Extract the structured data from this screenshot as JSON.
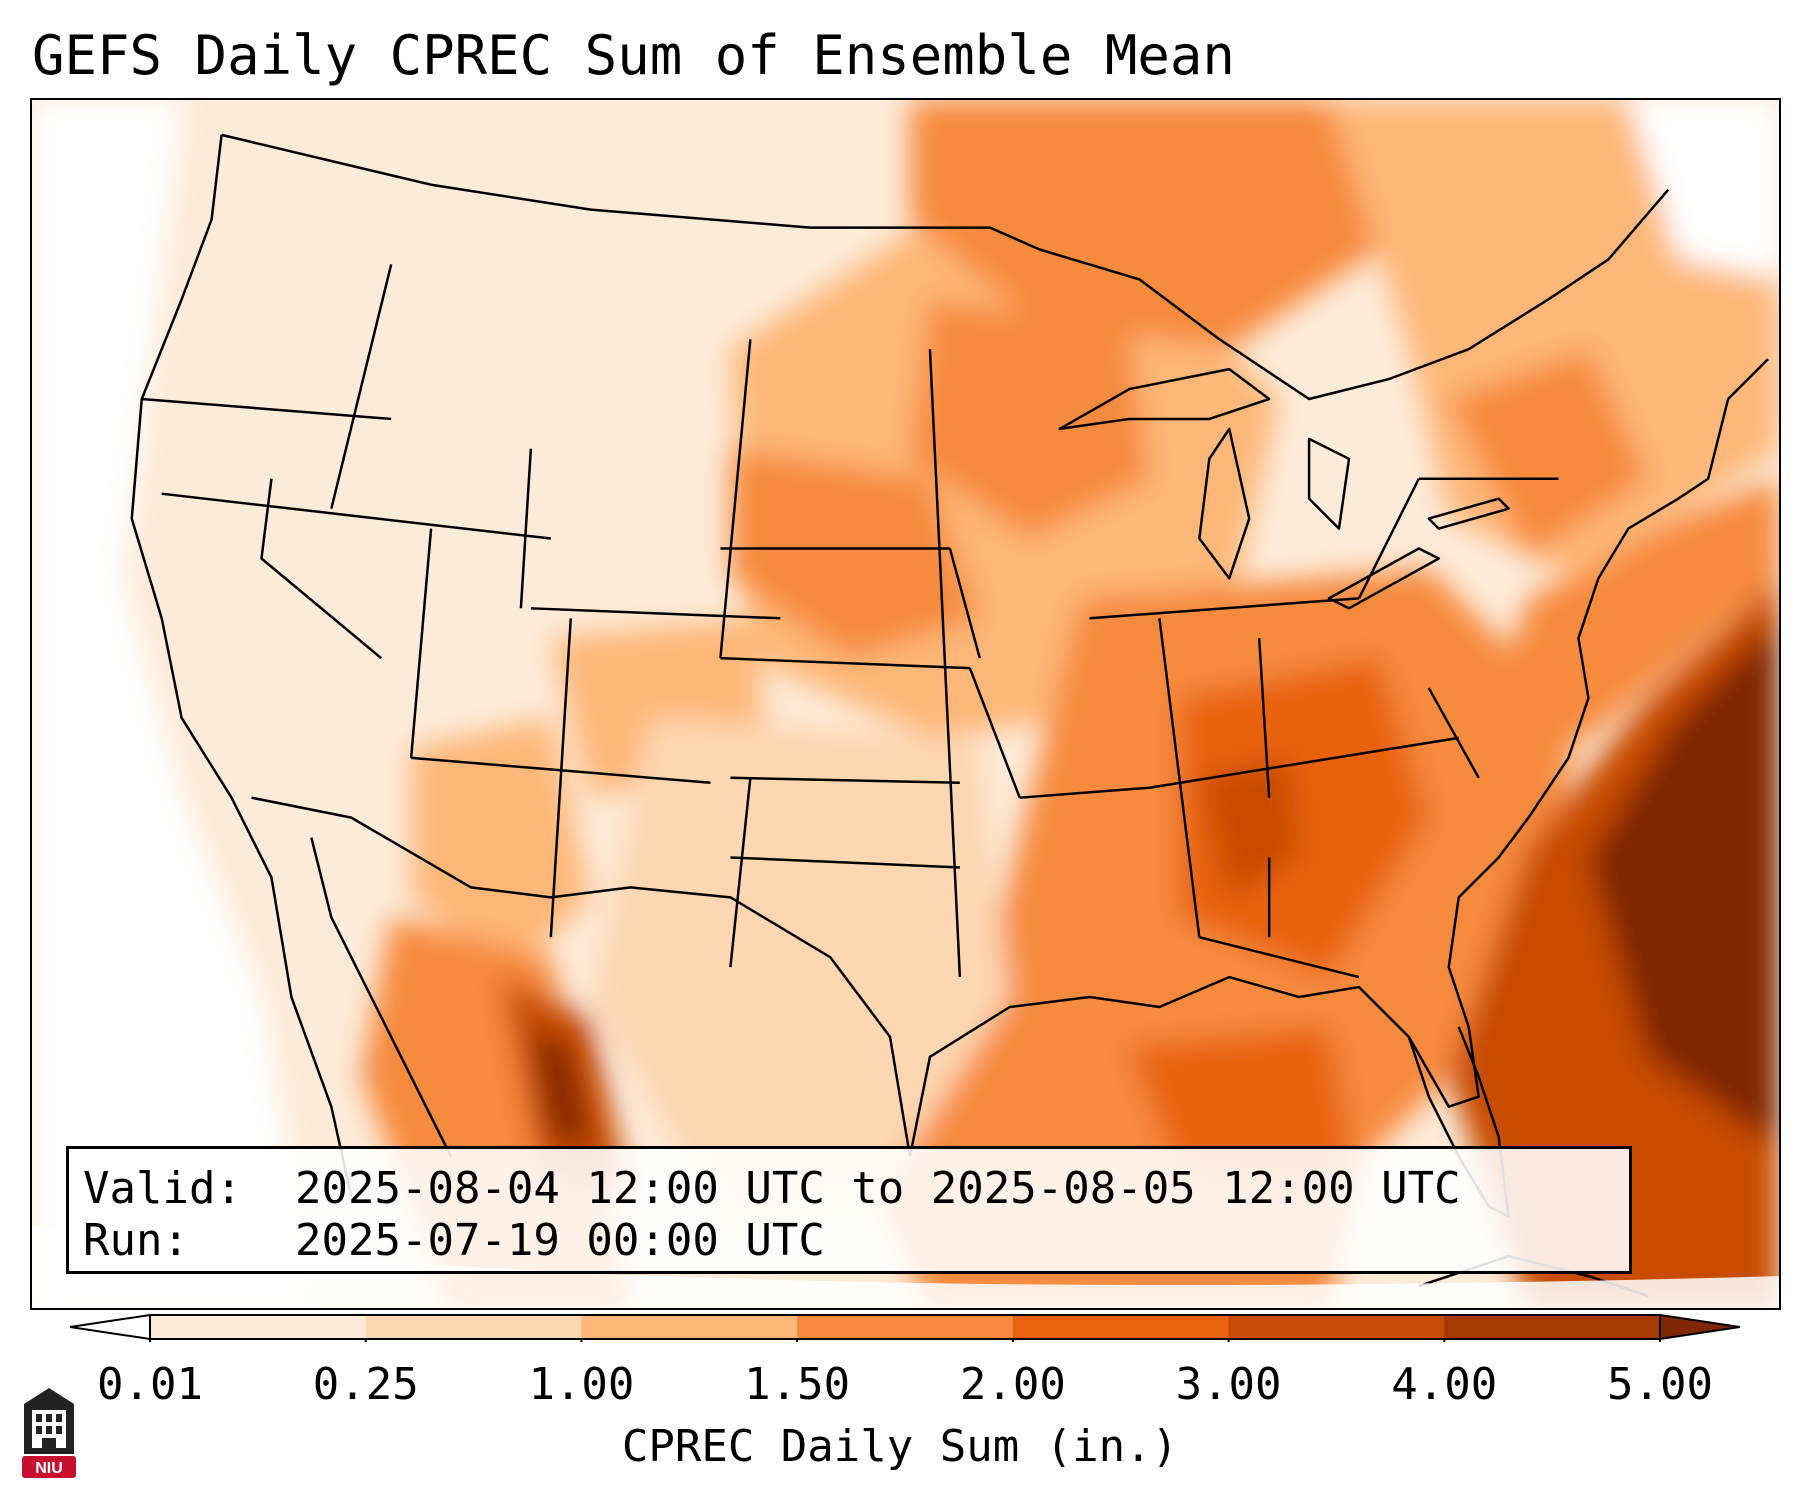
{
  "title": "GEFS Daily CPREC Sum of Ensemble Mean",
  "info": {
    "valid_label": "Valid:",
    "valid_value": "2025-08-04 12:00 UTC to 2025-08-05 12:00 UTC",
    "run_label": "Run:",
    "run_value": "2025-07-19 00:00 UTC"
  },
  "colorbar": {
    "label": "CPREC Daily Sum (in.)",
    "ticks": [
      "0.01",
      "0.25",
      "1.00",
      "1.50",
      "2.00",
      "3.00",
      "4.00",
      "5.00"
    ],
    "colors": {
      "under": "#ffffff",
      "c0": "#fdebd9",
      "c1": "#fdd7b2",
      "c2": "#fdb778",
      "c3": "#f68a3c",
      "c4": "#e8620f",
      "c5": "#c84c06",
      "c6": "#a63a03",
      "over": "#7f2704"
    }
  },
  "logo": {
    "text": "NIU",
    "icon": "university-tower-icon",
    "accent": "#c8102e"
  },
  "map": {
    "region": "CONUS",
    "borders": "state and national boundaries"
  }
}
